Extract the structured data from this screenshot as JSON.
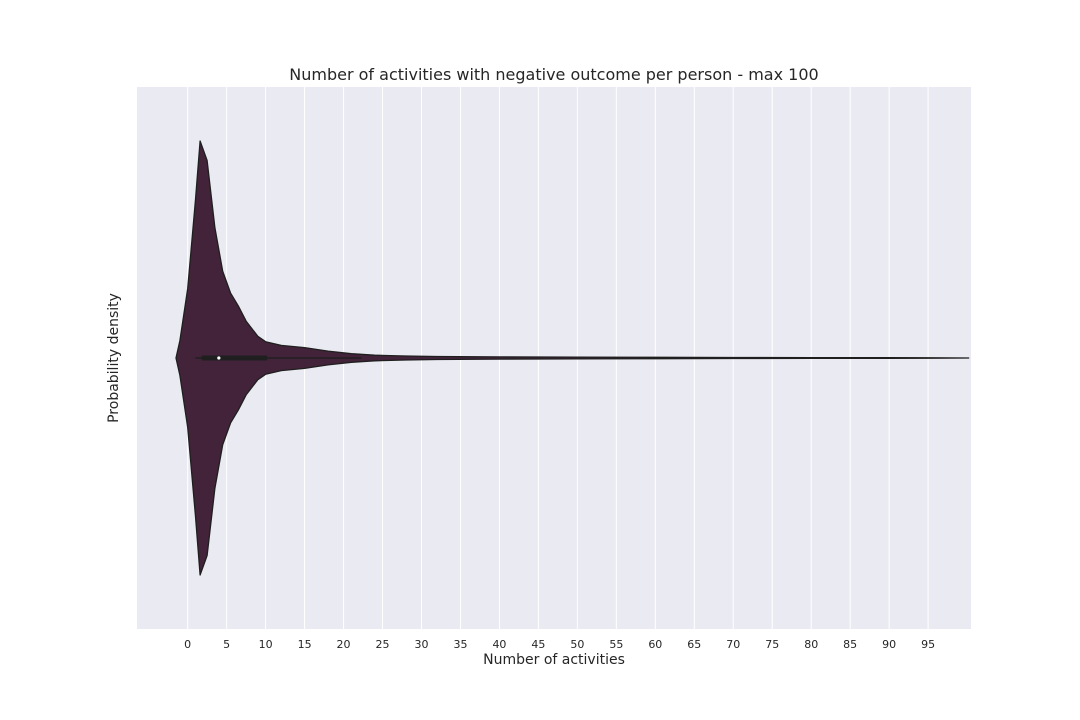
{
  "chart_data": {
    "type": "violin",
    "orientation": "horizontal",
    "title": "Number of activities with negative outcome per person - max 100",
    "xlabel": "Number of activities",
    "ylabel": "Probability density",
    "xlim": [
      -6.5,
      100.5
    ],
    "xticks": [
      0,
      5,
      10,
      15,
      20,
      25,
      30,
      35,
      40,
      45,
      50,
      55,
      60,
      65,
      70,
      75,
      80,
      85,
      90,
      95
    ],
    "grid": true,
    "grid_axis": "x",
    "legend": "none",
    "colors": {
      "background": "#eaeaf2",
      "grid": "#ffffff",
      "violin_fill": "#43233a",
      "violin_edge": "#1f1f1f",
      "box": "#1f1f1f",
      "median": "#ffffff",
      "text": "#262626"
    },
    "density_profile": {
      "x": [
        -1.5,
        -1,
        0,
        1,
        1.6,
        2.5,
        3.5,
        4.5,
        5.5,
        6.5,
        7.5,
        9,
        10,
        12,
        15,
        18,
        21,
        24,
        28,
        32,
        40,
        50,
        60,
        70,
        80,
        90,
        95,
        100.2
      ],
      "relative_density": [
        0.0,
        0.08,
        0.32,
        0.73,
        1.0,
        0.91,
        0.6,
        0.4,
        0.3,
        0.24,
        0.17,
        0.1,
        0.075,
        0.058,
        0.048,
        0.032,
        0.02,
        0.013,
        0.009,
        0.007,
        0.005,
        0.004,
        0.003,
        0.0025,
        0.002,
        0.0015,
        0.001,
        0.0
      ]
    },
    "box": {
      "q1": 1.8,
      "median": 4,
      "q3": 10.2,
      "whisker_low": 1,
      "whisker_high": 22.3
    }
  }
}
